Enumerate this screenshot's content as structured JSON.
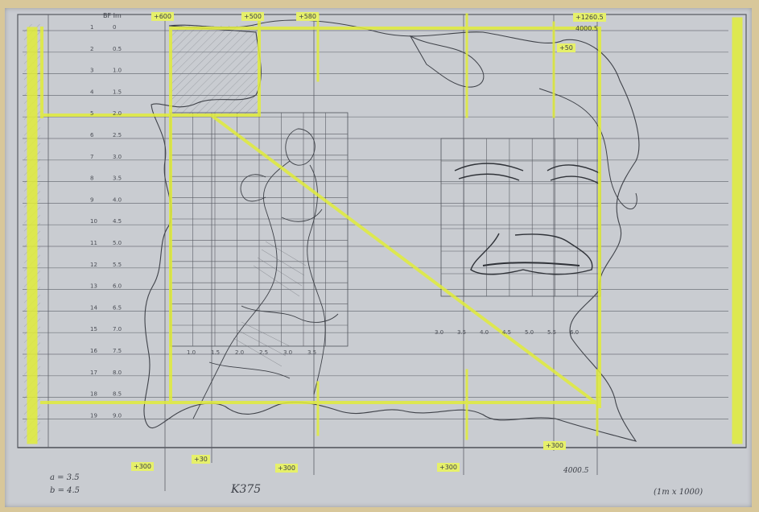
{
  "colors": {
    "paper": "#c9ccd1",
    "pencil": "#4a4d55",
    "highlighter": "#e1ec3a",
    "backdrop": "#d8c79a"
  },
  "top_tags": [
    "BF Im",
    "+600",
    "+500",
    "+580"
  ],
  "top_right_label": "+1260.5",
  "top_right_sub": "4000.5",
  "right_tag": "+50",
  "left_scale": [
    {
      "n": "1",
      "v": "0"
    },
    {
      "n": "2",
      "v": "0.5"
    },
    {
      "n": "3",
      "v": "1.0"
    },
    {
      "n": "4",
      "v": "1.5"
    },
    {
      "n": "5",
      "v": "2.0"
    },
    {
      "n": "6",
      "v": "2.5"
    },
    {
      "n": "7",
      "v": "3.0"
    },
    {
      "n": "8",
      "v": "3.5"
    },
    {
      "n": "9",
      "v": "4.0"
    },
    {
      "n": "10",
      "v": "4.5"
    },
    {
      "n": "11",
      "v": "5.0"
    },
    {
      "n": "12",
      "v": "5.5"
    },
    {
      "n": "13",
      "v": "6.0"
    },
    {
      "n": "14",
      "v": "6.5"
    },
    {
      "n": "15",
      "v": "7.0"
    },
    {
      "n": "16",
      "v": "7.5"
    },
    {
      "n": "17",
      "v": "8.0"
    },
    {
      "n": "18",
      "v": "8.5"
    },
    {
      "n": "19",
      "v": "9.0"
    }
  ],
  "grid_bottom_labels": [
    "1.0",
    "1.5",
    "2.0",
    "2.5",
    "3.0",
    "3.5"
  ],
  "face_grid_bottom_labels": [
    "3.0",
    "3.5",
    "4.0",
    "4.5",
    "5.0",
    "5.5",
    "6.0"
  ],
  "bottom_tags": [
    "+300",
    "+30",
    "+300",
    "+300",
    "+300"
  ],
  "bottom_right_label": "4000.5",
  "bottom_left_notes": [
    "a = 3.5",
    "b = 4.5"
  ],
  "center_note": "K375",
  "scale_note": "(1m x 1000)"
}
